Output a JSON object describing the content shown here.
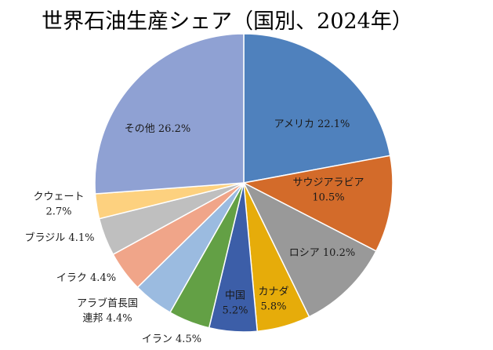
{
  "chart_data": {
    "type": "pie",
    "title": "世界石油生産シェア（国別、2024年）",
    "slices": [
      {
        "label": "アメリカ",
        "value": 22.1,
        "value_text": "22.1%",
        "color": "#4f81bd"
      },
      {
        "label": "サウジアラビア",
        "value": 10.5,
        "value_text": "10.5%",
        "color": "#d36b2a"
      },
      {
        "label": "ロシア",
        "value": 10.2,
        "value_text": "10.2%",
        "color": "#999999"
      },
      {
        "label": "カナダ",
        "value": 5.8,
        "value_text": "5.8%",
        "color": "#e6ac0a"
      },
      {
        "label": "中国",
        "value": 5.2,
        "value_text": "5.2%",
        "color": "#3c5ea8"
      },
      {
        "label": "イラン",
        "value": 4.5,
        "value_text": "4.5%",
        "color": "#63a045"
      },
      {
        "label": "アラブ首長国連邦",
        "value": 4.4,
        "value_text": "4.4%",
        "color": "#9bbbe0"
      },
      {
        "label": "イラク",
        "value": 4.4,
        "value_text": "4.4%",
        "color": "#f0a589"
      },
      {
        "label": "ブラジル",
        "value": 4.1,
        "value_text": "4.1%",
        "color": "#bfbfbf"
      },
      {
        "label": "クウェート",
        "value": 2.7,
        "value_text": "2.7%",
        "color": "#fdd17f"
      },
      {
        "label": "その他",
        "value": 26.2,
        "value_text": "26.2%",
        "color": "#8fa1d3"
      }
    ],
    "legend": "none"
  }
}
